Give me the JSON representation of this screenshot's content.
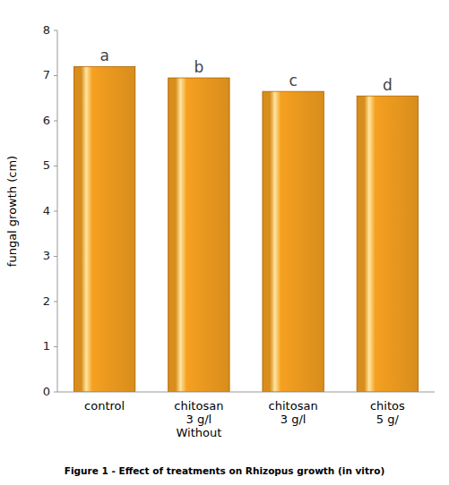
{
  "chart_data": {
    "type": "bar",
    "categories": [
      "control",
      "chitosan\n3 g/l\nWithout",
      "chitosan\n3 g/l",
      "chitos\n5 g/"
    ],
    "values": [
      7.2,
      6.95,
      6.65,
      6.55
    ],
    "annotations": [
      "a",
      "b",
      "c",
      "d"
    ],
    "color": "#F5A020",
    "ylabel": "fungal growth (cm)",
    "caption": "Figure 1 - Effect of treatments on Rhizopus growth (in vitro)",
    "ylim": [
      0,
      8
    ],
    "yticks": [
      0,
      1,
      2,
      3,
      4,
      5,
      6,
      7,
      8
    ],
    "grid": false
  }
}
